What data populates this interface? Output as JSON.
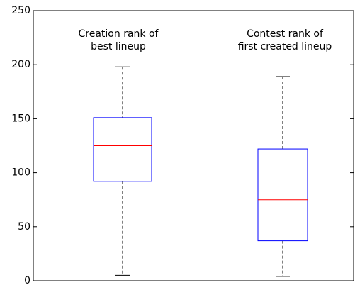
{
  "chart_data": {
    "type": "box",
    "boxes": [
      {
        "min": 5,
        "q1": 92,
        "median": 125,
        "q3": 151,
        "max": 198
      },
      {
        "min": 4,
        "q1": 37,
        "median": 75,
        "q3": 122,
        "max": 189
      }
    ],
    "annotations": [
      {
        "lines": [
          "Creation rank of",
          "best lineup"
        ]
      },
      {
        "lines": [
          "Contest rank of",
          "first created lineup"
        ]
      }
    ],
    "box_color": "#0000ff",
    "median_color": "#ff0000",
    "whisker_color": "#000000",
    "ylim": [
      0,
      250
    ],
    "yticks": [
      0,
      50,
      100,
      150,
      200,
      250
    ]
  }
}
